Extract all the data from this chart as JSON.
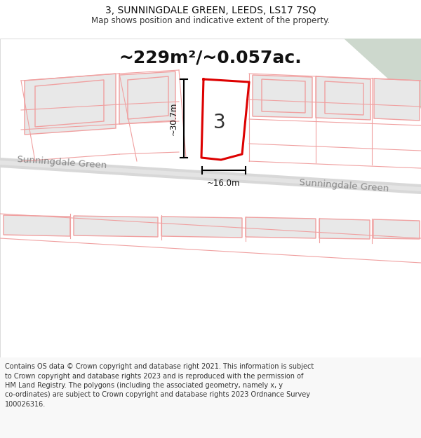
{
  "title_line1": "3, SUNNINGDALE GREEN, LEEDS, LS17 7SQ",
  "title_line2": "Map shows position and indicative extent of the property.",
  "area_text": "~229m²/~0.057ac.",
  "label_number": "3",
  "dim_width": "~16.0m",
  "dim_height": "~30.7m",
  "road_label_left": "Sunningdale Green",
  "road_label_right": "Sunningdale Green",
  "footer_lines": [
    "Contains OS data © Crown copyright and database right 2021. This information is subject",
    "to Crown copyright and database rights 2023 and is reproduced with the permission of",
    "HM Land Registry. The polygons (including the associated geometry, namely x, y",
    "co-ordinates) are subject to Crown copyright and database rights 2023 Ordnance Survey",
    "100026316."
  ],
  "bg_color": "#ffffff",
  "map_bg": "#ffffff",
  "plot_stroke": "#dd0000",
  "neighbor_fill": "#e8e8e8",
  "neighbor_stroke": "#f0a0a0",
  "road_color": "#d8d8d8",
  "road_edge": "#c8c8c8",
  "corner_fill": "#cdd8cd",
  "arrow_color": "#111111",
  "footer_bg": "#f8f8f8",
  "line_color": "#f0a0a0"
}
